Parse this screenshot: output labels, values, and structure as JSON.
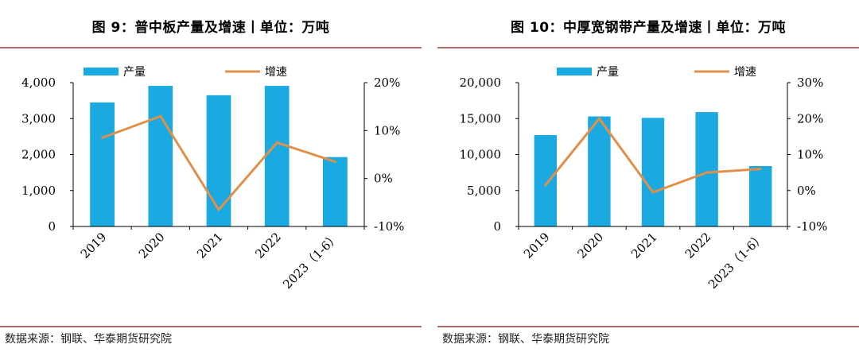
{
  "chart_data": [
    {
      "type": "bar+line",
      "title": "图 9：普中板产量及增速丨单位：万吨",
      "source": "数据来源：钢联、华泰期货研究院",
      "categories": [
        "2019",
        "2020",
        "2021",
        "2022",
        "2023（1-6）"
      ],
      "series": [
        {
          "name": "产量",
          "type": "bar",
          "axis": "left",
          "color": "#1aa9e0",
          "values": [
            3450,
            3910,
            3650,
            3910,
            1930
          ]
        },
        {
          "name": "增速",
          "type": "line",
          "axis": "right",
          "color": "#e0904a",
          "values": [
            8.5,
            13.0,
            -6.5,
            7.5,
            3.5
          ]
        }
      ],
      "y_left": {
        "min": 0,
        "max": 4000,
        "ticks": [
          0,
          1000,
          2000,
          3000,
          4000
        ],
        "tick_labels": [
          "0",
          "1,000",
          "2,000",
          "3,000",
          "4,000"
        ]
      },
      "y_right": {
        "min": -10,
        "max": 20,
        "ticks": [
          -10,
          0,
          10,
          20
        ],
        "tick_labels": [
          "-10%",
          "0%",
          "10%",
          "20%"
        ]
      },
      "grid": false,
      "legend": "top"
    },
    {
      "type": "bar+line",
      "title": "图 10：中厚宽钢带产量及增速丨单位：万吨",
      "source": "数据来源：钢联、华泰期货研究院",
      "categories": [
        "2019",
        "2020",
        "2021",
        "2022",
        "2023（1-6）"
      ],
      "series": [
        {
          "name": "产量",
          "type": "bar",
          "axis": "left",
          "color": "#1aa9e0",
          "values": [
            12700,
            15300,
            15100,
            15900,
            8400
          ]
        },
        {
          "name": "增速",
          "type": "line",
          "axis": "right",
          "color": "#e0904a",
          "values": [
            1.5,
            20.0,
            -0.5,
            5.0,
            6.0
          ]
        }
      ],
      "y_left": {
        "min": 0,
        "max": 20000,
        "ticks": [
          0,
          5000,
          10000,
          15000,
          20000
        ],
        "tick_labels": [
          "0",
          "5,000",
          "10,000",
          "15,000",
          "20,000"
        ]
      },
      "y_right": {
        "min": -10,
        "max": 30,
        "ticks": [
          -10,
          0,
          10,
          20,
          30
        ],
        "tick_labels": [
          "-10%",
          "0%",
          "10%",
          "20%",
          "30%"
        ]
      },
      "grid": false,
      "legend": "top"
    }
  ]
}
